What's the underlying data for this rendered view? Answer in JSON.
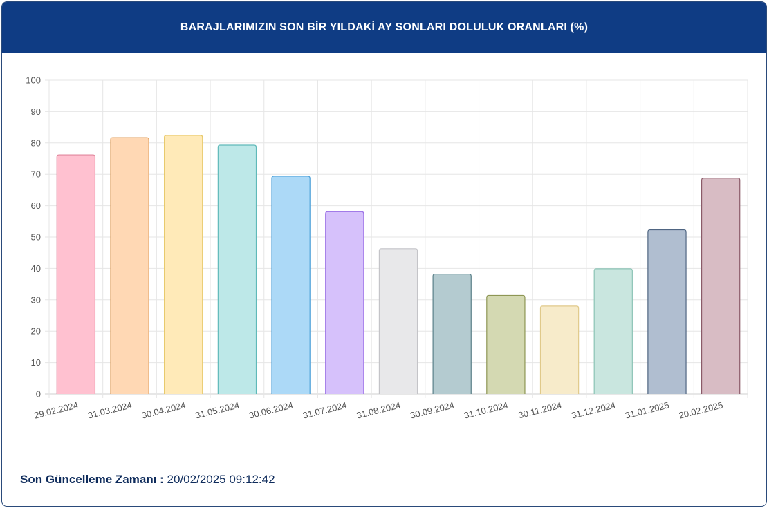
{
  "header": {
    "title": "BARAJLARIMIZIN SON BİR YILDAKİ AY SONLARI DOLULUK ORANLARI (%)"
  },
  "footer": {
    "label": "Son Güncelleme Zamanı :",
    "value": " 20/02/2025 09:12:42"
  },
  "chart_data": {
    "type": "bar",
    "title": "BARAJLARIMIZIN SON BİR YILDAKİ AY SONLARI DOLULUK ORANLARI (%)",
    "xlabel": "",
    "ylabel": "",
    "categories": [
      "29.02.2024",
      "31.03.2024",
      "30.04.2024",
      "31.05.2024",
      "30.06.2024",
      "31.07.2024",
      "31.08.2024",
      "30.09.2024",
      "31.10.2024",
      "30.11.2024",
      "31.12.2024",
      "31.01.2025",
      "20.02.2025"
    ],
    "values": [
      76.2,
      81.7,
      82.4,
      79.3,
      69.4,
      58.1,
      46.3,
      38.2,
      31.4,
      28.0,
      39.9,
      52.3,
      68.8
    ],
    "ylim": [
      0,
      100
    ],
    "yticks": [
      0,
      10,
      20,
      30,
      40,
      50,
      60,
      70,
      80,
      90,
      100
    ],
    "grid": true,
    "legend": "none",
    "colors": [
      {
        "fill": "#ffc1d0",
        "stroke": "#e0879c"
      },
      {
        "fill": "#ffd8b4",
        "stroke": "#e0a060"
      },
      {
        "fill": "#ffeab8",
        "stroke": "#e6c766"
      },
      {
        "fill": "#bde8e8",
        "stroke": "#5fb9b9"
      },
      {
        "fill": "#acd9f7",
        "stroke": "#4a9fd8"
      },
      {
        "fill": "#d6c1fb",
        "stroke": "#9b70e6"
      },
      {
        "fill": "#e8e8ea",
        "stroke": "#c4c4c8"
      },
      {
        "fill": "#b4cbd0",
        "stroke": "#5b8089"
      },
      {
        "fill": "#d4d9b2",
        "stroke": "#8e9654"
      },
      {
        "fill": "#f7ebca",
        "stroke": "#e0c98a"
      },
      {
        "fill": "#c9e6df",
        "stroke": "#8cc4b6"
      },
      {
        "fill": "#b0bed0",
        "stroke": "#4f6582"
      },
      {
        "fill": "#d8bcc4",
        "stroke": "#8a5a68"
      }
    ]
  }
}
